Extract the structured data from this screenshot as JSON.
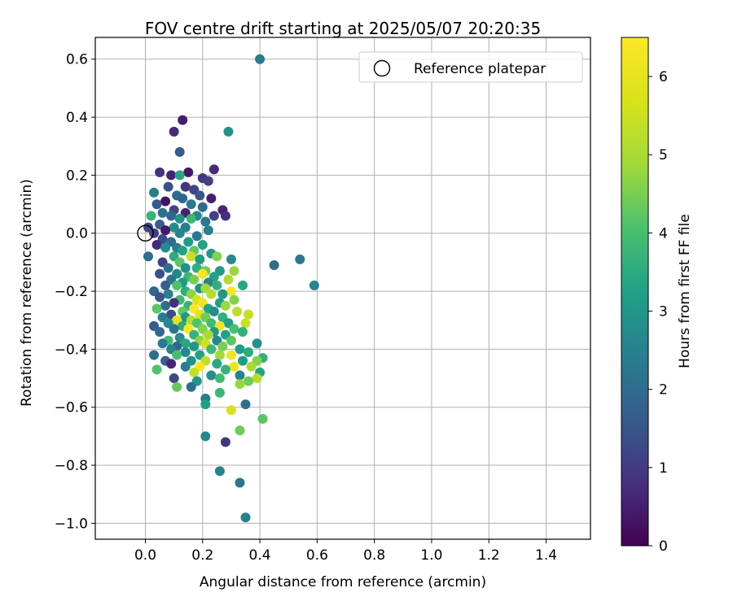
{
  "chart_data": {
    "type": "scatter",
    "title": "FOV centre drift starting at 2025/05/07 20:20:35",
    "xlabel": "Angular distance from reference (arcmin)",
    "ylabel": "Rotation from reference (arcmin)",
    "xlim": [
      -0.175,
      1.555
    ],
    "ylim": [
      -1.055,
      0.675
    ],
    "xticks": [
      0.0,
      0.2,
      0.4,
      0.6,
      0.8,
      1.0,
      1.2,
      1.4
    ],
    "xtick_labels": [
      "0.0",
      "0.2",
      "0.4",
      "0.6",
      "0.8",
      "1.0",
      "1.2",
      "1.4"
    ],
    "yticks": [
      0.6,
      0.4,
      0.2,
      0.0,
      -0.2,
      -0.4,
      -0.6,
      -0.8,
      -1.0
    ],
    "ytick_labels": [
      "0.6",
      "0.4",
      "0.2",
      "0.0",
      "−0.2",
      "−0.4",
      "−0.6",
      "−0.8",
      "−1.0"
    ],
    "grid": true,
    "legend": {
      "position": "top-right",
      "label": "Reference platepar"
    },
    "reference_point": {
      "x": 0.0,
      "y": 0.0
    },
    "colorbar": {
      "label": "Hours from first FF file",
      "range": [
        0,
        6.5
      ],
      "ticks": [
        0,
        1,
        2,
        3,
        4,
        5,
        6
      ],
      "tick_labels": [
        "0",
        "1",
        "2",
        "3",
        "4",
        "5",
        "6"
      ],
      "colormap": "viridis"
    },
    "points": [
      [
        0.4,
        0.6,
        2.3
      ],
      [
        0.13,
        0.39,
        0.5
      ],
      [
        0.29,
        0.35,
        2.9
      ],
      [
        0.1,
        0.35,
        0.7
      ],
      [
        0.12,
        0.28,
        1.6
      ],
      [
        0.24,
        0.22,
        0.7
      ],
      [
        0.05,
        0.21,
        0.8
      ],
      [
        0.15,
        0.21,
        0.4
      ],
      [
        0.09,
        0.2,
        0.6
      ],
      [
        0.12,
        0.2,
        3.4
      ],
      [
        0.2,
        0.19,
        0.9
      ],
      [
        0.22,
        0.18,
        1.1
      ],
      [
        0.08,
        0.16,
        1.4
      ],
      [
        0.14,
        0.16,
        0.9
      ],
      [
        0.17,
        0.15,
        1.2
      ],
      [
        0.03,
        0.14,
        2.4
      ],
      [
        0.11,
        0.13,
        2.0
      ],
      [
        0.19,
        0.13,
        1.5
      ],
      [
        0.13,
        0.12,
        1.8
      ],
      [
        0.23,
        0.12,
        0.5
      ],
      [
        0.07,
        0.11,
        0.3
      ],
      [
        0.16,
        0.1,
        2.3
      ],
      [
        0.04,
        0.1,
        1.6
      ],
      [
        0.2,
        0.09,
        2.0
      ],
      [
        0.1,
        0.08,
        1.2
      ],
      [
        0.27,
        0.08,
        0.6
      ],
      [
        0.06,
        0.07,
        2.1
      ],
      [
        0.14,
        0.07,
        0.6
      ],
      [
        0.02,
        0.06,
        3.7
      ],
      [
        0.09,
        0.06,
        1.9
      ],
      [
        0.18,
        0.06,
        2.6
      ],
      [
        0.24,
        0.06,
        1.1
      ],
      [
        0.28,
        0.06,
        0.8
      ],
      [
        0.12,
        0.05,
        2.9
      ],
      [
        0.16,
        0.05,
        3.8
      ],
      [
        0.21,
        0.04,
        2.3
      ],
      [
        0.05,
        0.03,
        1.7
      ],
      [
        0.1,
        0.02,
        2.8
      ],
      [
        0.01,
        0.02,
        1.2
      ],
      [
        0.14,
        0.02,
        2.4
      ],
      [
        0.07,
        0.01,
        0.4
      ],
      [
        0.22,
        0.01,
        2.5
      ],
      [
        0.03,
        0.0,
        1.1
      ],
      [
        0.12,
        0.0,
        2.6
      ],
      [
        0.18,
        -0.01,
        2.2
      ],
      [
        0.06,
        -0.02,
        1.3
      ],
      [
        0.09,
        -0.03,
        1.9
      ],
      [
        0.15,
        -0.03,
        3.1
      ],
      [
        0.04,
        -0.04,
        0.7
      ],
      [
        0.2,
        -0.04,
        3.3
      ],
      [
        0.11,
        -0.05,
        2.4
      ],
      [
        0.07,
        -0.05,
        2.8
      ],
      [
        0.13,
        -0.06,
        3.3
      ],
      [
        0.17,
        -0.06,
        4.3
      ],
      [
        0.23,
        -0.07,
        3.0
      ],
      [
        0.01,
        -0.08,
        2.0
      ],
      [
        0.1,
        -0.08,
        3.5
      ],
      [
        0.16,
        -0.08,
        5.5
      ],
      [
        0.19,
        -0.09,
        3.1
      ],
      [
        0.25,
        -0.08,
        4.6
      ],
      [
        0.06,
        -0.1,
        1.1
      ],
      [
        0.12,
        -0.1,
        4.2
      ],
      [
        0.3,
        -0.09,
        2.7
      ],
      [
        0.54,
        -0.09,
        2.3
      ],
      [
        0.45,
        -0.11,
        2.0
      ],
      [
        0.08,
        -0.12,
        2.1
      ],
      [
        0.14,
        -0.12,
        2.9
      ],
      [
        0.18,
        -0.12,
        3.6
      ],
      [
        0.21,
        -0.13,
        4.4
      ],
      [
        0.26,
        -0.13,
        3.1
      ],
      [
        0.31,
        -0.13,
        4.8
      ],
      [
        0.05,
        -0.14,
        1.4
      ],
      [
        0.11,
        -0.14,
        2.7
      ],
      [
        0.15,
        -0.15,
        3.8
      ],
      [
        0.2,
        -0.14,
        6.3
      ],
      [
        0.24,
        -0.15,
        3.3
      ],
      [
        0.09,
        -0.16,
        2.2
      ],
      [
        0.13,
        -0.17,
        3.1
      ],
      [
        0.17,
        -0.16,
        4.5
      ],
      [
        0.29,
        -0.16,
        5.1
      ],
      [
        0.22,
        -0.17,
        2.6
      ],
      [
        0.07,
        -0.18,
        1.7
      ],
      [
        0.11,
        -0.18,
        4.1
      ],
      [
        0.19,
        -0.19,
        2.9
      ],
      [
        0.25,
        -0.18,
        3.6
      ],
      [
        0.34,
        -0.18,
        3.4
      ],
      [
        0.59,
        -0.18,
        2.5
      ],
      [
        0.03,
        -0.2,
        1.9
      ],
      [
        0.14,
        -0.2,
        3.5
      ],
      [
        0.21,
        -0.19,
        4.9
      ],
      [
        0.3,
        -0.2,
        6.4
      ],
      [
        0.08,
        -0.21,
        2.5
      ],
      [
        0.16,
        -0.21,
        4.7
      ],
      [
        0.23,
        -0.21,
        5.2
      ],
      [
        0.27,
        -0.21,
        3.0
      ],
      [
        0.05,
        -0.22,
        1.5
      ],
      [
        0.12,
        -0.23,
        3.9
      ],
      [
        0.18,
        -0.23,
        5.6
      ],
      [
        0.26,
        -0.24,
        3.2
      ],
      [
        0.1,
        -0.24,
        0.8
      ],
      [
        0.2,
        -0.24,
        6.2
      ],
      [
        0.31,
        -0.23,
        4.6
      ],
      [
        0.07,
        -0.25,
        2.1
      ],
      [
        0.15,
        -0.25,
        3.7
      ],
      [
        0.22,
        -0.26,
        3.3
      ],
      [
        0.28,
        -0.25,
        4.8
      ],
      [
        0.04,
        -0.26,
        4.2
      ],
      [
        0.17,
        -0.26,
        6.5
      ],
      [
        0.13,
        -0.27,
        4.3
      ],
      [
        0.24,
        -0.27,
        2.8
      ],
      [
        0.09,
        -0.28,
        1.3
      ],
      [
        0.19,
        -0.28,
        5.9
      ],
      [
        0.32,
        -0.27,
        5.3
      ],
      [
        0.06,
        -0.29,
        2.4
      ],
      [
        0.14,
        -0.29,
        3.0
      ],
      [
        0.21,
        -0.29,
        4.4
      ],
      [
        0.27,
        -0.29,
        3.6
      ],
      [
        0.36,
        -0.28,
        5.4
      ],
      [
        0.11,
        -0.3,
        6.0
      ],
      [
        0.16,
        -0.3,
        5.2
      ],
      [
        0.23,
        -0.31,
        3.9
      ],
      [
        0.08,
        -0.31,
        2.7
      ],
      [
        0.18,
        -0.31,
        4.1
      ],
      [
        0.29,
        -0.31,
        3.2
      ],
      [
        0.03,
        -0.32,
        1.6
      ],
      [
        0.13,
        -0.32,
        3.5
      ],
      [
        0.26,
        -0.32,
        6.3
      ],
      [
        0.35,
        -0.31,
        5.5
      ],
      [
        0.2,
        -0.33,
        4.6
      ],
      [
        0.1,
        -0.33,
        2.2
      ],
      [
        0.15,
        -0.33,
        6.4
      ],
      [
        0.24,
        -0.34,
        3.1
      ],
      [
        0.31,
        -0.33,
        4.0
      ],
      [
        0.05,
        -0.34,
        1.9
      ],
      [
        0.17,
        -0.35,
        3.7
      ],
      [
        0.22,
        -0.35,
        5.0
      ],
      [
        0.12,
        -0.36,
        2.8
      ],
      [
        0.28,
        -0.35,
        3.3
      ],
      [
        0.34,
        -0.34,
        3.6
      ],
      [
        0.08,
        -0.37,
        3.9
      ],
      [
        0.19,
        -0.37,
        4.7
      ],
      [
        0.25,
        -0.37,
        2.6
      ],
      [
        0.14,
        -0.38,
        3.4
      ],
      [
        0.3,
        -0.37,
        4.2
      ],
      [
        0.06,
        -0.38,
        2.3
      ],
      [
        0.21,
        -0.38,
        5.6
      ],
      [
        0.39,
        -0.38,
        2.9
      ],
      [
        0.11,
        -0.39,
        1.8
      ],
      [
        0.17,
        -0.39,
        3.0
      ],
      [
        0.27,
        -0.39,
        4.5
      ],
      [
        0.33,
        -0.4,
        3.2
      ],
      [
        0.09,
        -0.4,
        2.5
      ],
      [
        0.23,
        -0.4,
        3.8
      ],
      [
        0.36,
        -0.41,
        3.5
      ],
      [
        0.14,
        -0.41,
        2.7
      ],
      [
        0.19,
        -0.42,
        3.3
      ],
      [
        0.03,
        -0.42,
        2.1
      ],
      [
        0.26,
        -0.42,
        4.9
      ],
      [
        0.3,
        -0.42,
        6.2
      ],
      [
        0.11,
        -0.42,
        4.0
      ],
      [
        0.41,
        -0.43,
        3.6
      ],
      [
        0.07,
        -0.44,
        1.7
      ],
      [
        0.16,
        -0.44,
        2.9
      ],
      [
        0.21,
        -0.44,
        5.3
      ],
      [
        0.34,
        -0.44,
        3.1
      ],
      [
        0.39,
        -0.44,
        4.6
      ],
      [
        0.09,
        -0.45,
        0.6
      ],
      [
        0.25,
        -0.45,
        3.4
      ],
      [
        0.31,
        -0.46,
        6.1
      ],
      [
        0.37,
        -0.46,
        5.0
      ],
      [
        0.14,
        -0.46,
        2.4
      ],
      [
        0.19,
        -0.46,
        6.4
      ],
      [
        0.04,
        -0.47,
        4.1
      ],
      [
        0.28,
        -0.47,
        3.7
      ],
      [
        0.4,
        -0.48,
        3.3
      ],
      [
        0.17,
        -0.48,
        5.4
      ],
      [
        0.23,
        -0.49,
        2.8
      ],
      [
        0.33,
        -0.49,
        2.5
      ],
      [
        0.1,
        -0.5,
        1.2
      ],
      [
        0.26,
        -0.5,
        3.9
      ],
      [
        0.39,
        -0.5,
        5.2
      ],
      [
        0.18,
        -0.51,
        3.0
      ],
      [
        0.36,
        -0.51,
        4.4
      ],
      [
        0.11,
        -0.53,
        4.3
      ],
      [
        0.16,
        -0.53,
        2.0
      ],
      [
        0.33,
        -0.52,
        4.8
      ],
      [
        0.26,
        -0.55,
        3.8
      ],
      [
        0.21,
        -0.57,
        2.3
      ],
      [
        0.35,
        -0.59,
        2.1
      ],
      [
        0.21,
        -0.59,
        3.2
      ],
      [
        0.3,
        -0.61,
        5.7
      ],
      [
        0.41,
        -0.64,
        4.2
      ],
      [
        0.33,
        -0.68,
        4.4
      ],
      [
        0.21,
        -0.7,
        2.6
      ],
      [
        0.28,
        -0.72,
        0.9
      ],
      [
        0.26,
        -0.82,
        2.5
      ],
      [
        0.33,
        -0.86,
        2.2
      ],
      [
        0.35,
        -0.98,
        2.5
      ]
    ]
  }
}
